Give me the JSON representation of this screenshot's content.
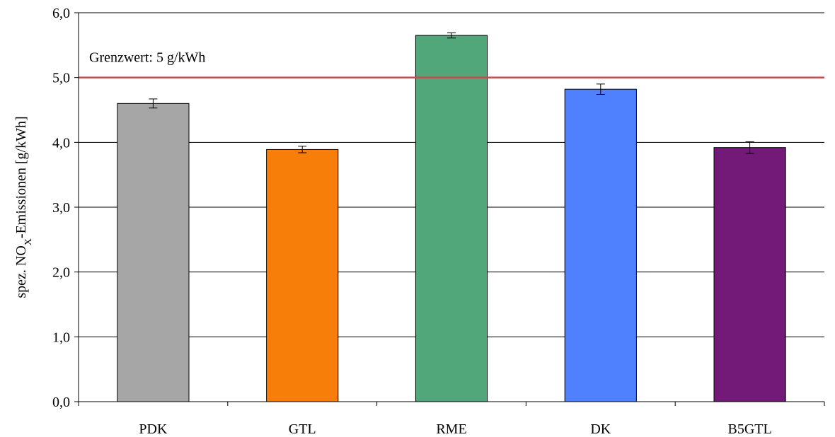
{
  "chart_data": {
    "type": "bar",
    "categories": [
      "PDK",
      "GTL",
      "RME",
      "DK",
      "B5GTL"
    ],
    "values": [
      4.6,
      3.89,
      5.65,
      4.82,
      3.92
    ],
    "errors": [
      0.07,
      0.05,
      0.04,
      0.08,
      0.09
    ],
    "bar_colors": [
      "#a6a6a6",
      "#f77e08",
      "#51a67a",
      "#4f81ff",
      "#731a78"
    ],
    "ylabel_main": "spez. NO",
    "ylabel_sub": "X",
    "ylabel_rest": "-Emissionen [g/kWh]",
    "ylim": [
      0,
      6
    ],
    "yticks": [
      0,
      1,
      2,
      3,
      4,
      5,
      6
    ],
    "ytick_labels": [
      "0,0",
      "1,0",
      "2,0",
      "3,0",
      "4,0",
      "5,0",
      "6,0"
    ],
    "grid": true,
    "reference_line": {
      "value": 5,
      "label": "Grenzwert: 5 g/kWh",
      "color": "#c0504d"
    }
  }
}
